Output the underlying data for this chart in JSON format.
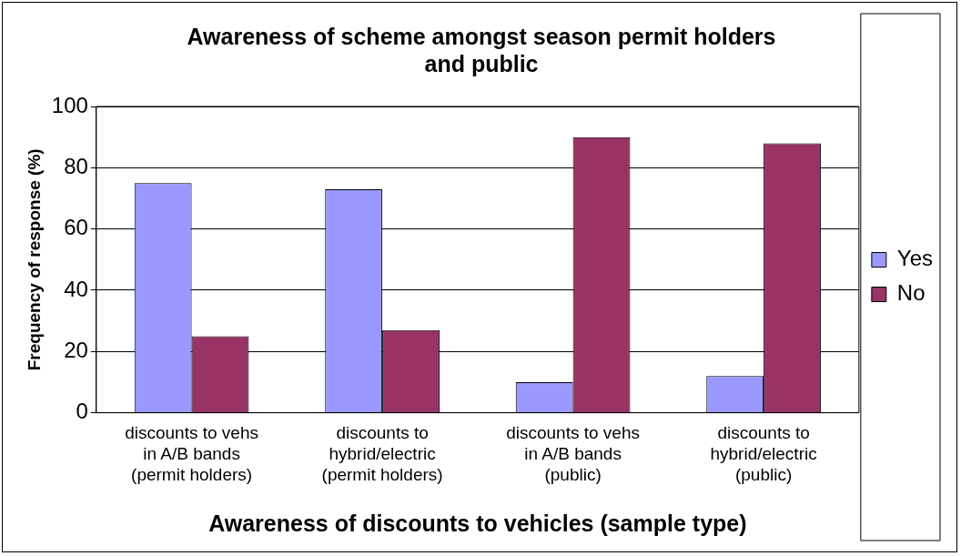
{
  "chart_data": {
    "type": "bar",
    "title": "Awareness of scheme amongst season permit holders and public",
    "xlabel": "Awareness of discounts to vehicles (sample type)",
    "ylabel": "Frequency of response (%)",
    "categories": [
      "discounts to vehs in A/B bands (permit holders)",
      "discounts to hybrid/electric (permit holders)",
      "discounts to vehs in A/B bands (public)",
      "discounts to hybrid/electric (public)"
    ],
    "series": [
      {
        "name": "Yes",
        "color": "#9999ff",
        "values": [
          75,
          73,
          10,
          12
        ]
      },
      {
        "name": "No",
        "color": "#993366",
        "values": [
          25,
          27,
          90,
          88
        ]
      }
    ],
    "ylim": [
      0,
      100
    ],
    "yticks": [
      0,
      20,
      40,
      60,
      80,
      100
    ],
    "grid": "y",
    "legend": "right"
  }
}
